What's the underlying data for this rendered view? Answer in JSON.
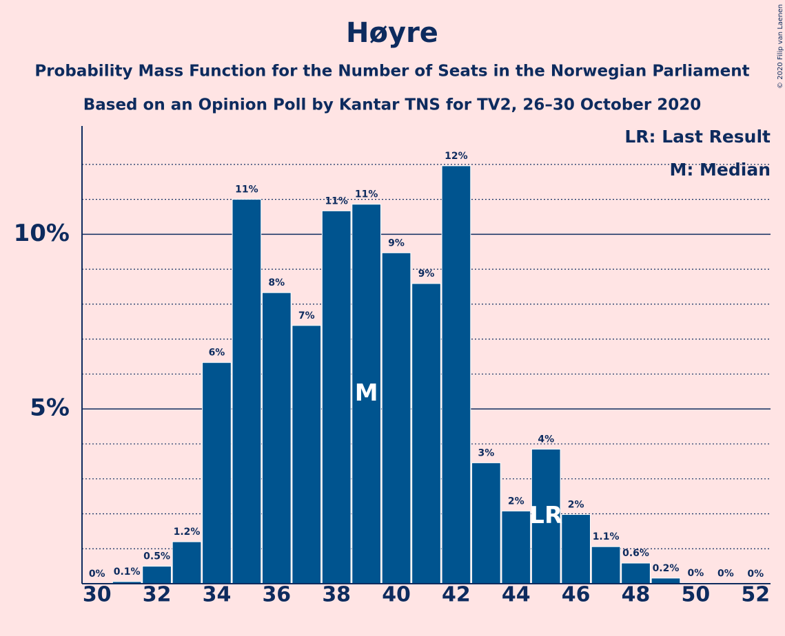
{
  "chart_data": {
    "type": "bar",
    "title": "Høyre",
    "subtitle": "Probability Mass Function for the Number of Seats in the Norwegian Parliament",
    "subtitle2": "Based on an Opinion Poll by Kantar TNS for TV2, 26–30 October 2020",
    "copyright": "© 2020 Filip van Laenen",
    "x": [
      30,
      31,
      32,
      33,
      34,
      35,
      36,
      37,
      38,
      39,
      40,
      41,
      42,
      43,
      44,
      45,
      46,
      47,
      48,
      49,
      50,
      51,
      52
    ],
    "values": [
      0,
      0.06,
      0.5,
      1.2,
      6.33,
      11.0,
      8.33,
      7.39,
      10.67,
      10.86,
      9.47,
      8.59,
      11.96,
      3.46,
      2.08,
      3.85,
      1.98,
      1.06,
      0.59,
      0.16,
      0.02,
      0.01,
      0
    ],
    "value_labels": [
      "0%",
      "0.1%",
      "0.5%",
      "1.2%",
      "6%",
      "11%",
      "8%",
      "7%",
      "11%",
      "11%",
      "9%",
      "9%",
      "12%",
      "3%",
      "2%",
      "4%",
      "2%",
      "1.1%",
      "0.6%",
      "0.2%",
      "0%",
      "0%",
      "0%"
    ],
    "color": "#00548f",
    "xlim": [
      29.5,
      52.5
    ],
    "xticks": [
      30,
      32,
      34,
      36,
      38,
      40,
      42,
      44,
      46,
      48,
      50,
      52
    ],
    "ylim": [
      0,
      13.1
    ],
    "yticks": [
      {
        "value": 5,
        "label": "5%"
      },
      {
        "value": 10,
        "label": "10%"
      }
    ],
    "minor_yticks": [
      1,
      2,
      3,
      4,
      6,
      7,
      8,
      9,
      11,
      12
    ],
    "grid": true,
    "annotations": [
      {
        "x": 39,
        "label": "M"
      },
      {
        "x": 45,
        "label": "LR"
      }
    ],
    "legend": [
      "LR: Last Result",
      "M: Median"
    ],
    "legend_position": "upper right"
  }
}
